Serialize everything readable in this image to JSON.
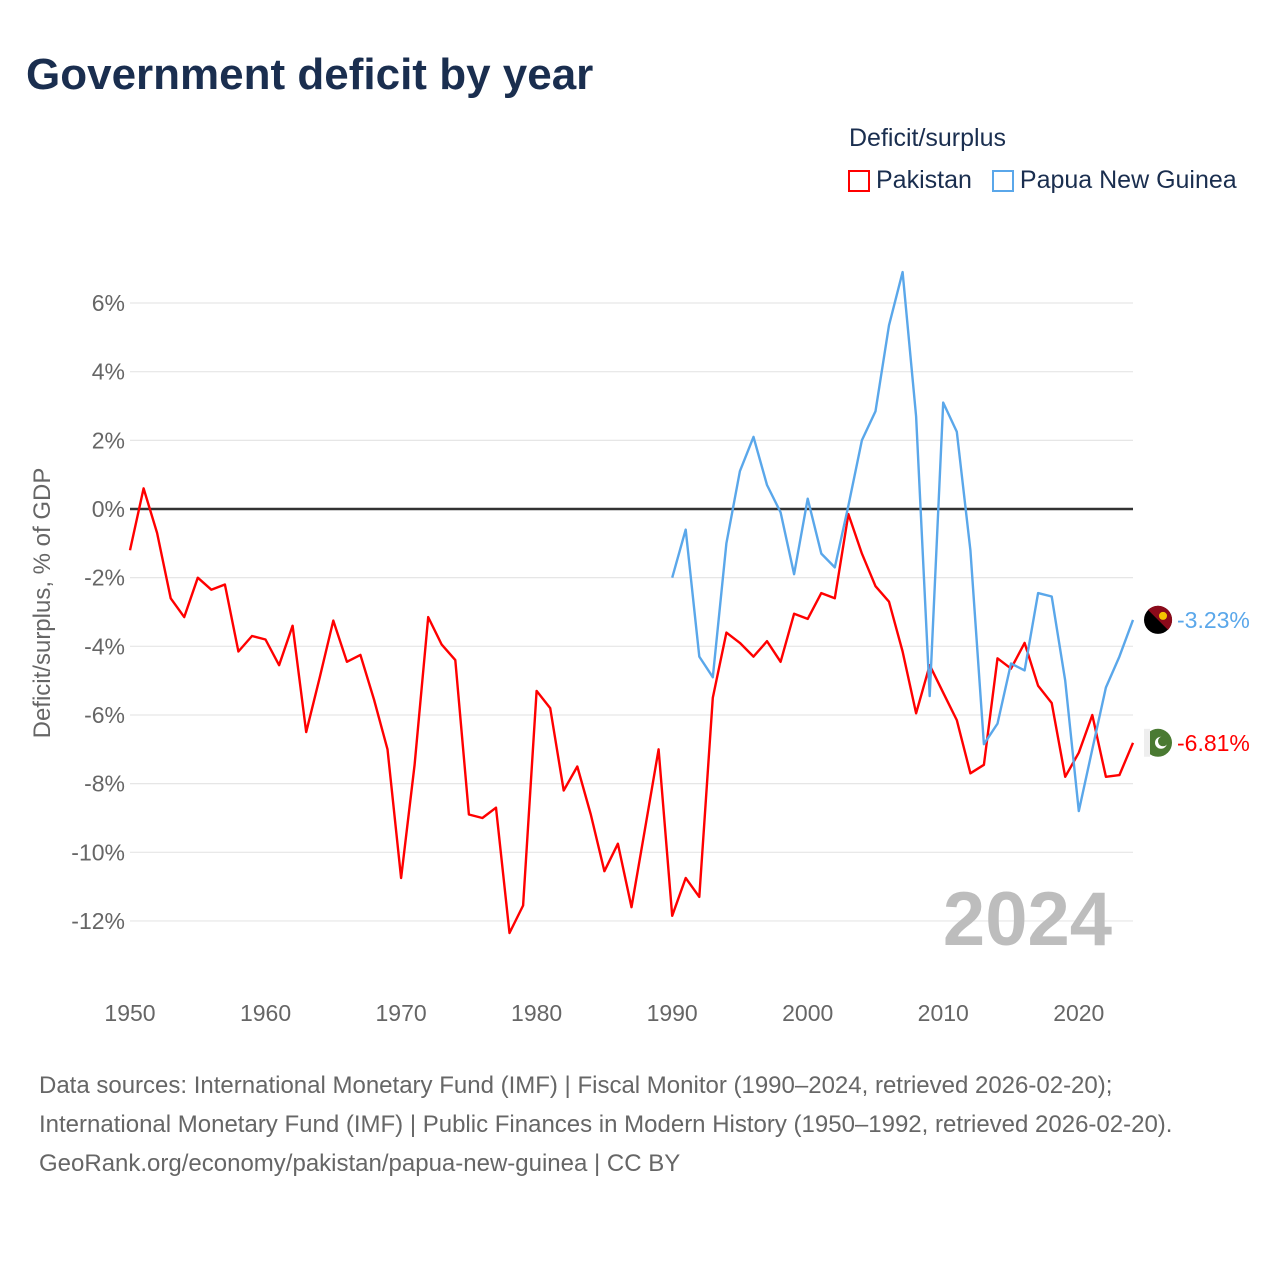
{
  "title": "Government deficit by year",
  "legend": {
    "title": "Deficit/surplus",
    "items": [
      {
        "label": "Pakistan",
        "color": "#ff0000"
      },
      {
        "label": "Papua New Guinea",
        "color": "#5aa7ea"
      }
    ]
  },
  "chart_data": {
    "type": "line",
    "title": "Government deficit by year",
    "ylabel": "Deficit/surplus, % of GDP",
    "xlabel": "",
    "xlim": [
      1950,
      2024
    ],
    "ylim": [
      -14,
      7
    ],
    "x_ticks": [
      1950,
      1960,
      1970,
      1980,
      1990,
      2000,
      2010,
      2020
    ],
    "x_tick_labels": [
      "1950",
      "1960",
      "1970",
      "1980",
      "1990",
      "2000",
      "2010",
      "2020"
    ],
    "y_ticks": [
      6,
      4,
      2,
      0,
      -2,
      -4,
      -6,
      -8,
      -10,
      -12
    ],
    "y_tick_labels": [
      "6%",
      "4%",
      "2%",
      "0%",
      "-2%",
      "-4%",
      "-6%",
      "-8%",
      "-10%",
      "-12%"
    ],
    "grid": true,
    "year_watermark": "2024",
    "series": [
      {
        "name": "Pakistan",
        "color": "#ff0000",
        "start_year": 1950,
        "end_label": "-6.81%",
        "flag": "pakistan-flag",
        "values": [
          -1.2,
          0.6,
          -0.7,
          -2.6,
          -3.15,
          -2.0,
          -2.35,
          -2.2,
          -4.15,
          -3.7,
          -3.8,
          -4.55,
          -3.4,
          -6.5,
          -4.9,
          -3.25,
          -4.45,
          -4.25,
          -5.55,
          -7.0,
          -10.75,
          -7.45,
          -3.15,
          -3.95,
          -4.4,
          -8.9,
          -9.0,
          -8.7,
          -12.35,
          -11.55,
          -5.3,
          -5.8,
          -8.2,
          -7.5,
          -8.9,
          -10.55,
          -9.75,
          -11.6,
          -9.3,
          -7.0,
          -11.85,
          -10.75,
          -11.3,
          -5.5,
          -3.6,
          -3.9,
          -4.3,
          -3.85,
          -4.45,
          -3.05,
          -3.2,
          -2.45,
          -2.6,
          -0.15,
          -1.3,
          -2.25,
          -2.7,
          -4.15,
          -5.95,
          -4.55,
          -5.35,
          -6.15,
          -7.7,
          -7.45,
          -4.35,
          -4.65,
          -3.9,
          -5.15,
          -5.65,
          -7.8,
          -7.1,
          -6.0,
          -7.8,
          -7.75,
          -6.81
        ]
      },
      {
        "name": "Papua New Guinea",
        "color": "#5aa7ea",
        "start_year": 1990,
        "end_label": "-3.23%",
        "flag": "papua-new-guinea-flag",
        "values": [
          -2.0,
          -0.6,
          -4.3,
          -4.9,
          -1.0,
          1.1,
          2.1,
          0.7,
          -0.1,
          -1.9,
          0.3,
          -1.3,
          -1.7,
          0.1,
          2.0,
          2.85,
          5.35,
          6.9,
          2.7,
          -5.45,
          3.1,
          2.25,
          -1.2,
          -6.85,
          -6.25,
          -4.5,
          -4.7,
          -2.45,
          -2.55,
          -5.0,
          -8.8,
          -7.0,
          -5.2,
          -4.3,
          -3.23
        ]
      }
    ]
  },
  "footer": {
    "sources": "Data sources: International Monetary Fund (IMF) | Fiscal Monitor (1990–2024, retrieved 2026-02-20); International Monetary Fund (IMF) | Public Finances in Modern History (1950–1992, retrieved 2026-02-20).",
    "attribution": "GeoRank.org/economy/pakistan/papua-new-guinea | CC BY"
  }
}
